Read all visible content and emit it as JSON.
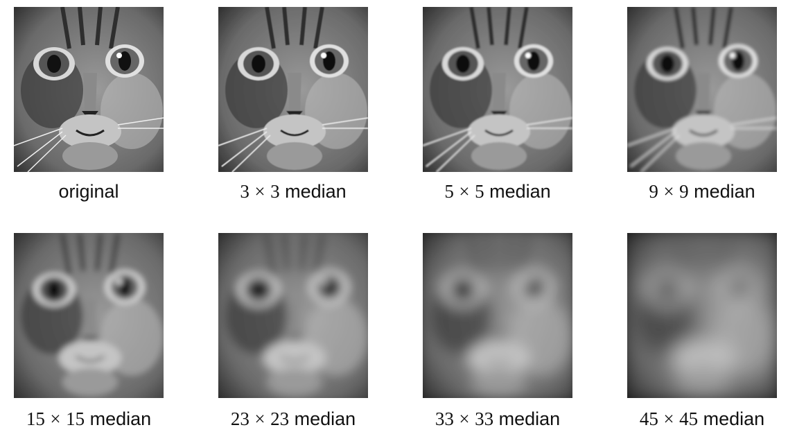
{
  "figure": {
    "panels": [
      {
        "caption": "original",
        "size": "",
        "times": "",
        "word": "original",
        "blur": 0
      },
      {
        "caption": "3 × 3 median",
        "size": "3",
        "times": "×",
        "word": "median",
        "blur": 0.6
      },
      {
        "caption": "5 × 5 median",
        "size": "5",
        "times": "×",
        "word": "median",
        "blur": 1.2
      },
      {
        "caption": "9 × 9 median",
        "size": "9",
        "times": "×",
        "word": "median",
        "blur": 2.4
      },
      {
        "caption": "15 × 15 median",
        "size": "15",
        "times": "×",
        "word": "median",
        "blur": 4.5
      },
      {
        "caption": "23 × 23 median",
        "size": "23",
        "times": "×",
        "word": "median",
        "blur": 7
      },
      {
        "caption": "33 × 33 median",
        "size": "33",
        "times": "×",
        "word": "median",
        "blur": 10
      },
      {
        "caption": "45 × 45 median",
        "size": "45",
        "times": "×",
        "word": "median",
        "blur": 14
      }
    ]
  }
}
